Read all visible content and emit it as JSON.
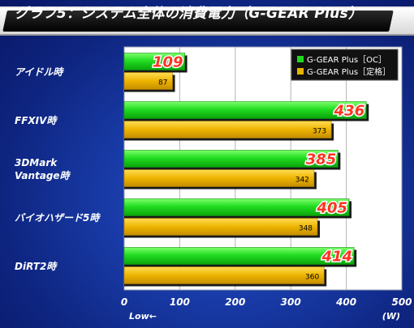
{
  "chart_data": {
    "type": "bar",
    "orientation": "horizontal",
    "title": "グラフ5：システム全体の消費電力（G-GEAR Plus）",
    "categories": [
      [
        "アイドル時"
      ],
      [
        "FFXIV時"
      ],
      [
        "3DMark",
        "Vantage時"
      ],
      [
        "バイオハザード5時"
      ],
      [
        "DiRT2時"
      ]
    ],
    "series": [
      {
        "name": "G-GEAR Plus［OC］",
        "values": [
          109,
          436,
          385,
          405,
          414
        ],
        "color": "#1ed81e"
      },
      {
        "name": "G-GEAR Plus［定格］",
        "values": [
          87,
          373,
          342,
          348,
          360
        ],
        "color": "#e8b400"
      }
    ],
    "xlim": [
      0,
      500
    ],
    "x_ticks": [
      "0",
      "100",
      "200",
      "300",
      "400",
      "500"
    ],
    "x_unit": "(W)",
    "x_note": "Low←",
    "legend_position": "top-right",
    "grid": true
  }
}
